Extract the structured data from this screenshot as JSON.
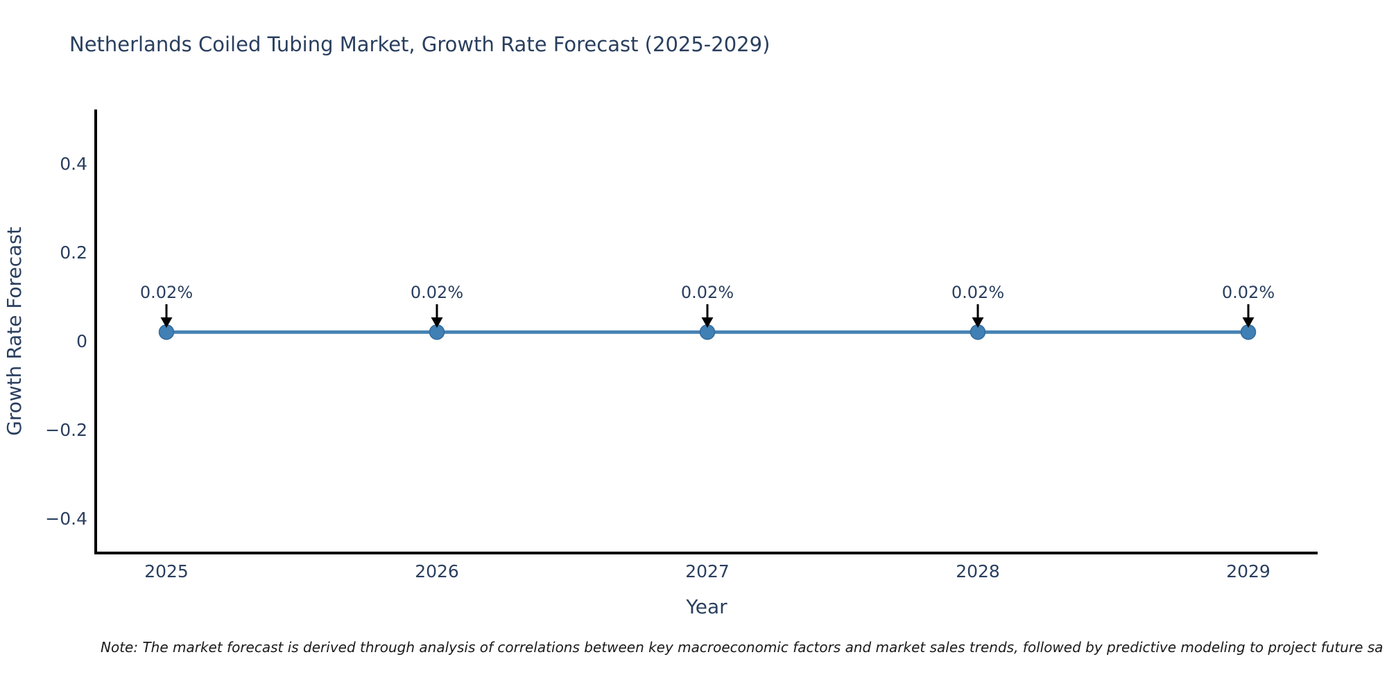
{
  "note": {
    "text": "Note: The market forecast is derived through analysis of correlations between key macroeconomic factors and market sales trends, followed by predictive modeling to project future sa"
  },
  "chart_data": {
    "type": "line",
    "title": "Netherlands Coiled Tubing Market, Growth Rate Forecast (2025-2029)",
    "xlabel": "Year",
    "ylabel": "Growth Rate Forecast",
    "x": [
      2025,
      2026,
      2027,
      2028,
      2029
    ],
    "xtick_labels": [
      "2025",
      "2026",
      "2027",
      "2028",
      "2029"
    ],
    "series": [
      {
        "name": "Growth Rate Forecast",
        "values": [
          0.02,
          0.02,
          0.02,
          0.02,
          0.02
        ]
      }
    ],
    "point_labels": [
      "0.02%",
      "0.02%",
      "0.02%",
      "0.02%",
      "0.02%"
    ],
    "yticks": [
      0.4,
      0.2,
      0,
      -0.2,
      -0.4
    ],
    "ytick_labels": [
      "0.4",
      "0.2",
      "0",
      "−0.2",
      "−0.4"
    ],
    "ylim": [
      -0.48,
      0.52
    ],
    "grid": false,
    "legend_position": "none",
    "colors": {
      "line": "#4682b4",
      "marker_fill": "#4080b4",
      "marker_edge": "#346a9c",
      "axis": "#000000",
      "text": "#2a3f5f",
      "annotation_arrow": "#000000",
      "note_text": "#1a1a1a"
    }
  }
}
